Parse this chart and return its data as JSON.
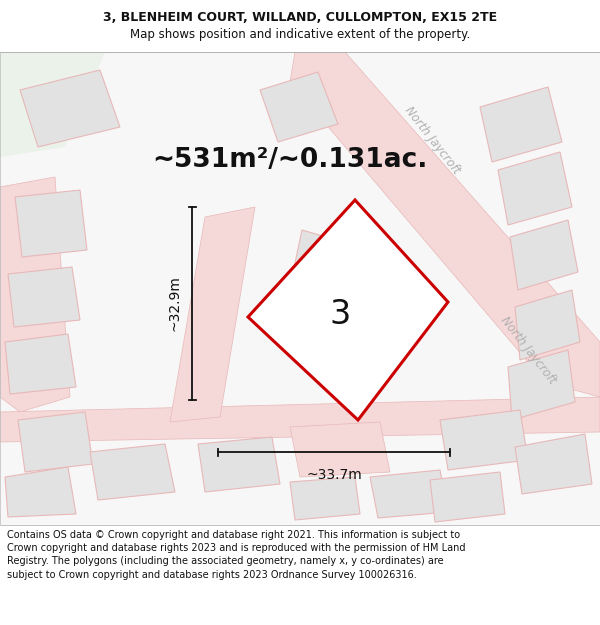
{
  "title_line1": "3, BLENHEIM COURT, WILLAND, CULLOMPTON, EX15 2TE",
  "title_line2": "Map shows position and indicative extent of the property.",
  "area_text": "~531m²/~0.131ac.",
  "label_number": "3",
  "dim_vertical": "~32.9m",
  "dim_horizontal": "~33.7m",
  "street_label1": "North Jaycroft",
  "street_label2": "North Jaycroft",
  "footer_text": "Contains OS data © Crown copyright and database right 2021. This information is subject to Crown copyright and database rights 2023 and is reproduced with the permission of HM Land Registry. The polygons (including the associated geometry, namely x, y co-ordinates) are subject to Crown copyright and database rights 2023 Ordnance Survey 100026316.",
  "map_bg": "#f7f7f7",
  "plot_outline_color": "#cc0000",
  "building_fill": "#e2e2e2",
  "building_stroke": "#e8b8b8",
  "road_fill": "#f5d8d8",
  "road_stroke": "#e8b8b8",
  "green_fill": "#eaf2ea",
  "dim_line_color": "#111111",
  "text_color": "#111111",
  "street_text_color": "#b0b0b0",
  "title_fontsize": 9.0,
  "footer_fontsize": 7.0,
  "area_fontsize": 19,
  "label_fontsize": 24,
  "dim_fontsize": 10,
  "street_fontsize": 8.5
}
